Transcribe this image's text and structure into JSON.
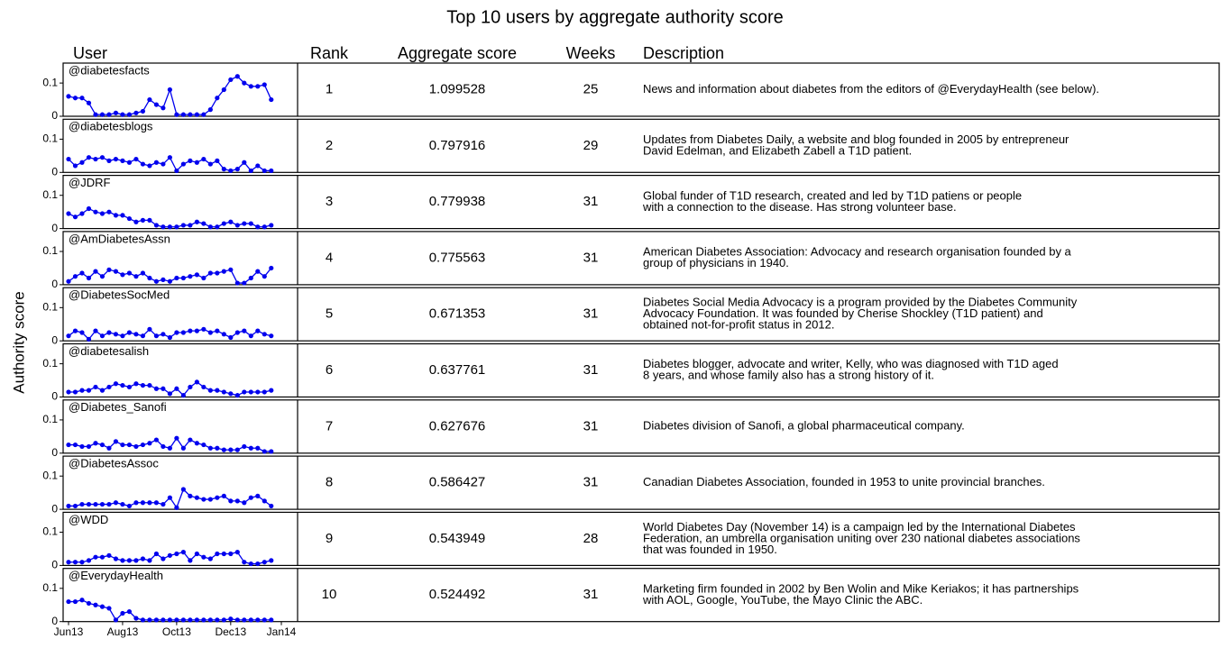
{
  "chart_data": {
    "type": "sparkline-table",
    "title": "Top 10 users by aggregate authority score",
    "columns": [
      "User",
      "Rank",
      "Aggregate score",
      "Weeks",
      "Description"
    ],
    "y_label": "Authority score",
    "ylim": [
      0,
      0.16
    ],
    "yticks": [
      0,
      0.1
    ],
    "xlim": [
      -0.8,
      33.9
    ],
    "xticks": [
      {
        "value": 0,
        "label": "Jun13"
      },
      {
        "value": 8,
        "label": "Aug13"
      },
      {
        "value": 16,
        "label": "Oct13"
      },
      {
        "value": 24,
        "label": "Dec13"
      },
      {
        "value": 31.5,
        "label": "Jan14"
      }
    ],
    "color": "#0000ee",
    "rows": [
      {
        "user": "@diabetesfacts",
        "rank": 1,
        "score": 1.099528,
        "weeks": 25,
        "description": [
          "News and information about diabetes from the editors of @EverydayHealth (see below)."
        ],
        "values": [
          0.06,
          0.055,
          0.055,
          0.04,
          0.005,
          0.005,
          0.005,
          0.01,
          0.005,
          0.005,
          0.01,
          0.015,
          0.05,
          0.035,
          0.025,
          0.08,
          0.005,
          0.005,
          0.005,
          0.005,
          0.005,
          0.02,
          0.055,
          0.08,
          0.11,
          0.12,
          0.1,
          0.09,
          0.09,
          0.095,
          0.05
        ]
      },
      {
        "user": "@diabetesblogs",
        "rank": 2,
        "score": 0.797916,
        "weeks": 29,
        "description": [
          "Updates from Diabetes Daily, a website and blog founded in 2005 by entrepreneur",
          "David Edelman, and Elizabeth Zabell a T1D patient."
        ],
        "values": [
          0.04,
          0.02,
          0.03,
          0.045,
          0.04,
          0.045,
          0.035,
          0.04,
          0.035,
          0.03,
          0.04,
          0.025,
          0.02,
          0.03,
          0.025,
          0.045,
          0.005,
          0.025,
          0.035,
          0.03,
          0.04,
          0.025,
          0.035,
          0.01,
          0.005,
          0.01,
          0.03,
          0.005,
          0.02,
          0.005,
          0.005
        ]
      },
      {
        "user": "@JDRF",
        "rank": 3,
        "score": 0.779938,
        "weeks": 31,
        "description": [
          "Global funder of T1D research, created and led by T1D patiens or people",
          "with a connection to the disease. Has strong volunteer base."
        ],
        "values": [
          0.045,
          0.035,
          0.045,
          0.06,
          0.05,
          0.045,
          0.05,
          0.04,
          0.04,
          0.03,
          0.02,
          0.025,
          0.025,
          0.01,
          0.005,
          0.005,
          0.005,
          0.01,
          0.01,
          0.02,
          0.015,
          0.005,
          0.005,
          0.015,
          0.02,
          0.01,
          0.015,
          0.015,
          0.005,
          0.005,
          0.01
        ]
      },
      {
        "user": "@AmDiabetesAssn",
        "rank": 4,
        "score": 0.775563,
        "weeks": 31,
        "description": [
          "American Diabetes Association: Advocacy and research organisation founded by a",
          "group of physicians in 1940."
        ],
        "values": [
          0.01,
          0.025,
          0.035,
          0.02,
          0.04,
          0.025,
          0.045,
          0.04,
          0.03,
          0.035,
          0.025,
          0.035,
          0.02,
          0.01,
          0.015,
          0.01,
          0.02,
          0.02,
          0.025,
          0.03,
          0.02,
          0.035,
          0.035,
          0.04,
          0.045,
          0.005,
          0.005,
          0.02,
          0.04,
          0.025,
          0.05
        ]
      },
      {
        "user": "@DiabetesSocMed",
        "rank": 5,
        "score": 0.671353,
        "weeks": 31,
        "description": [
          "Diabetes Social Media Advocacy is a program provided by the Diabetes Community",
          "Advocacy Foundation. It was founded by Cherise Shockley (T1D patient) and",
          "obtained not-for-profit status in 2012."
        ],
        "values": [
          0.015,
          0.03,
          0.025,
          0.005,
          0.03,
          0.015,
          0.025,
          0.02,
          0.015,
          0.025,
          0.02,
          0.015,
          0.035,
          0.015,
          0.02,
          0.01,
          0.025,
          0.025,
          0.03,
          0.03,
          0.035,
          0.025,
          0.03,
          0.02,
          0.01,
          0.025,
          0.03,
          0.015,
          0.03,
          0.02,
          0.015
        ]
      },
      {
        "user": "@diabetesalish",
        "rank": 6,
        "score": 0.637761,
        "weeks": 31,
        "description": [
          "Diabetes blogger, advocate and writer, Kelly, who was diagnosed with T1D aged",
          "8 years, and whose family also has a strong history of it."
        ],
        "values": [
          0.015,
          0.015,
          0.02,
          0.02,
          0.03,
          0.02,
          0.03,
          0.04,
          0.035,
          0.03,
          0.04,
          0.035,
          0.035,
          0.025,
          0.025,
          0.01,
          0.025,
          0.005,
          0.03,
          0.045,
          0.03,
          0.02,
          0.02,
          0.015,
          0.01,
          0.005,
          0.015,
          0.015,
          0.015,
          0.015,
          0.02
        ]
      },
      {
        "user": "@Diabetes_Sanofi",
        "rank": 7,
        "score": 0.627676,
        "weeks": 31,
        "description": [
          "Diabetes division of Sanofi, a global pharmaceutical company."
        ],
        "values": [
          0.025,
          0.025,
          0.02,
          0.02,
          0.03,
          0.025,
          0.015,
          0.035,
          0.025,
          0.025,
          0.02,
          0.025,
          0.03,
          0.04,
          0.02,
          0.015,
          0.045,
          0.015,
          0.04,
          0.03,
          0.025,
          0.015,
          0.015,
          0.01,
          0.01,
          0.01,
          0.02,
          0.015,
          0.015,
          0.005,
          0.005
        ]
      },
      {
        "user": "@DiabetesAssoc",
        "rank": 8,
        "score": 0.586427,
        "weeks": 31,
        "description": [
          "Canadian Diabetes Association, founded in 1953 to unite provincial branches."
        ],
        "values": [
          0.01,
          0.01,
          0.015,
          0.015,
          0.015,
          0.015,
          0.015,
          0.02,
          0.015,
          0.01,
          0.02,
          0.02,
          0.02,
          0.02,
          0.015,
          0.035,
          0.005,
          0.06,
          0.04,
          0.035,
          0.03,
          0.03,
          0.035,
          0.04,
          0.025,
          0.025,
          0.02,
          0.035,
          0.04,
          0.025,
          0.01
        ]
      },
      {
        "user": "@WDD",
        "rank": 9,
        "score": 0.543949,
        "weeks": 28,
        "description": [
          "World Diabetes Day (November 14) is a campaign led by the International Diabetes",
          "Federation, an umbrella organisation uniting over 230 national diabetes associations",
          "that was founded in 1950."
        ],
        "values": [
          0.01,
          0.01,
          0.01,
          0.015,
          0.025,
          0.025,
          0.03,
          0.02,
          0.015,
          0.015,
          0.015,
          0.02,
          0.015,
          0.035,
          0.02,
          0.03,
          0.035,
          0.04,
          0.015,
          0.035,
          0.025,
          0.02,
          0.035,
          0.035,
          0.035,
          0.04,
          0.01,
          0.005,
          0.005,
          0.01,
          0.015
        ]
      },
      {
        "user": "@EverydayHealth",
        "rank": 10,
        "score": 0.524492,
        "weeks": 31,
        "description": [
          "Marketing firm founded in 2002 by Ben Wolin and Mike Keriakos; it has partnerships",
          "with AOL, Google, YouTube, the Mayo Clinic the ABC."
        ],
        "values": [
          0.06,
          0.06,
          0.065,
          0.055,
          0.05,
          0.045,
          0.04,
          0.005,
          0.025,
          0.03,
          0.01,
          0.005,
          0.005,
          0.005,
          0.005,
          0.005,
          0.005,
          0.005,
          0.005,
          0.005,
          0.005,
          0.005,
          0.005,
          0.005,
          0.008,
          0.005,
          0.005,
          0.005,
          0.005,
          0.005,
          0.005
        ]
      }
    ]
  }
}
